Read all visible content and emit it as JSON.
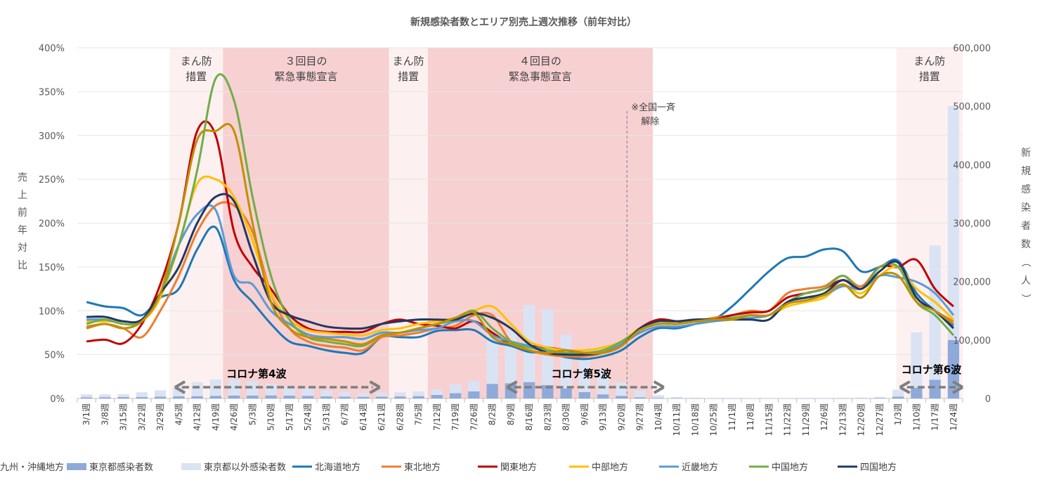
{
  "chart_data": {
    "type": "bar+line",
    "title": "新規感染者数とエリア別売上週次推移（前年対比）",
    "y_left_label": "売上前年対比",
    "y_right_label": "新規感染者数（人）",
    "y_left_ticks": [
      "0%",
      "50%",
      "100%",
      "150%",
      "200%",
      "250%",
      "300%",
      "350%",
      "400%"
    ],
    "y_left_range": [
      0,
      400
    ],
    "y_right_ticks": [
      "0",
      "100,000",
      "200,000",
      "300,000",
      "400,000",
      "500,000",
      "600,000"
    ],
    "y_right_range": [
      0,
      600000
    ],
    "categories": [
      "3/1週",
      "3/8週",
      "3/15週",
      "3/22週",
      "3/29週",
      "4/5週",
      "4/12週",
      "4/19週",
      "4/26週",
      "5/3週",
      "5/10週",
      "5/17週",
      "5/24週",
      "5/31週",
      "6/7週",
      "6/14週",
      "6/21週",
      "6/28週",
      "7/5週",
      "7/12週",
      "7/19週",
      "7/26週",
      "8/2週",
      "8/9週",
      "8/16週",
      "8/23週",
      "8/30週",
      "9/6週",
      "9/13週",
      "9/20週",
      "9/27週",
      "10/4週",
      "10/11週",
      "10/18週",
      "10/25週",
      "11/1週",
      "11/8週",
      "11/15週",
      "11/22週",
      "11/29週",
      "12/6週",
      "12/13週",
      "12/20週",
      "12/27週",
      "1/3週",
      "1/10週",
      "1/17週",
      "1/24週"
    ],
    "periods": [
      {
        "label": "まん防\n措置",
        "from": 5,
        "to": 7.9
      },
      {
        "label": "３回目の\n緊急事態宣言",
        "from": 7.9,
        "to": 16.9
      },
      {
        "label": "まん防\n措置",
        "from": 16.9,
        "to": 19
      },
      {
        "label": "４回目の\n緊急事態宣言",
        "from": 19,
        "to": 31.2
      },
      {
        "label": "まん防\n措置",
        "from": 44.4,
        "to": 48
      }
    ],
    "annotations": [
      {
        "text": "※全国一斉\n解除",
        "at": 29.8
      }
    ],
    "waves": [
      {
        "label": "コロナ第4波",
        "from": 5.3,
        "to": 16.4
      },
      {
        "label": "コロナ第5波",
        "from": 23.3,
        "to": 31.8
      },
      {
        "label": "コロナ第6波",
        "from": 44.6,
        "to": 48
      }
    ],
    "bar_series": [
      {
        "name": "東京都感染者数",
        "color": "#8eaadb",
        "values": [
          2100,
          2200,
          2400,
          2600,
          3000,
          3700,
          4000,
          4500,
          5000,
          5000,
          5200,
          4800,
          4500,
          3500,
          3000,
          2800,
          3200,
          3500,
          4000,
          6000,
          9000,
          12000,
          25000,
          26000,
          28000,
          23000,
          17000,
          11000,
          7000,
          4500,
          2000,
          1000,
          500,
          300,
          200,
          180,
          150,
          150,
          150,
          150,
          150,
          200,
          300,
          700,
          3000,
          18000,
          32000,
          100000
        ]
      },
      {
        "name": "東京都以外感染者数",
        "color": "#dae3f3",
        "values": [
          5000,
          4800,
          5000,
          8000,
          11000,
          17000,
          24000,
          28000,
          27000,
          25000,
          20000,
          16000,
          13000,
          10000,
          7500,
          6500,
          7000,
          7000,
          8000,
          9000,
          15000,
          18000,
          85000,
          90000,
          132000,
          130000,
          92000,
          62000,
          42000,
          23000,
          11000,
          4500,
          2000,
          1200,
          900,
          800,
          700,
          700,
          700,
          800,
          900,
          1100,
          1300,
          2000,
          12000,
          95000,
          230000,
          400000
        ]
      }
    ],
    "line_series": [
      {
        "name": "北海道地方",
        "color": "#1f77b4",
        "values": [
          110,
          105,
          103,
          95,
          115,
          125,
          170,
          195,
          135,
          110,
          85,
          65,
          60,
          55,
          52,
          52,
          70,
          70,
          70,
          77,
          78,
          78,
          65,
          60,
          53,
          52,
          47,
          45,
          48,
          55,
          70,
          80,
          80,
          85,
          90,
          105,
          125,
          145,
          160,
          162,
          170,
          168,
          145,
          150,
          157,
          120,
          100,
          83
        ]
      },
      {
        "name": "東北地方",
        "color": "#ed7d31",
        "values": [
          82,
          85,
          80,
          70,
          100,
          140,
          190,
          220,
          220,
          190,
          120,
          80,
          65,
          60,
          58,
          55,
          70,
          72,
          75,
          80,
          83,
          95,
          95,
          65,
          55,
          50,
          48,
          48,
          52,
          62,
          78,
          85,
          85,
          88,
          92,
          95,
          100,
          100,
          120,
          125,
          128,
          140,
          128,
          150,
          150,
          115,
          100,
          88
        ]
      },
      {
        "name": "関東地方",
        "color": "#c00000",
        "values": [
          65,
          67,
          63,
          85,
          130,
          200,
          305,
          300,
          190,
          150,
          125,
          95,
          80,
          76,
          76,
          76,
          85,
          90,
          85,
          83,
          80,
          88,
          75,
          62,
          60,
          58,
          55,
          52,
          52,
          60,
          80,
          90,
          88,
          88,
          90,
          95,
          98,
          100,
          115,
          120,
          125,
          135,
          125,
          150,
          150,
          158,
          125,
          105
        ]
      },
      {
        "name": "中部地方",
        "color": "#ffc000",
        "values": [
          88,
          88,
          88,
          88,
          115,
          175,
          245,
          250,
          230,
          180,
          120,
          90,
          78,
          75,
          73,
          72,
          78,
          80,
          85,
          88,
          92,
          100,
          105,
          85,
          65,
          58,
          55,
          55,
          58,
          65,
          80,
          85,
          88,
          88,
          90,
          92,
          95,
          95,
          105,
          110,
          115,
          130,
          120,
          140,
          150,
          125,
          110,
          90
        ]
      },
      {
        "name": "近畿地方",
        "color": "#5b9bd5",
        "values": [
          90,
          90,
          85,
          88,
          120,
          175,
          210,
          215,
          140,
          130,
          100,
          85,
          73,
          70,
          70,
          68,
          75,
          75,
          78,
          80,
          88,
          88,
          72,
          65,
          60,
          55,
          52,
          50,
          55,
          62,
          75,
          82,
          82,
          85,
          88,
          90,
          92,
          95,
          110,
          115,
          118,
          128,
          125,
          140,
          138,
          133,
          120,
          95
        ]
      },
      {
        "name": "中国地方",
        "color": "#70ad47",
        "values": [
          85,
          90,
          85,
          88,
          120,
          175,
          260,
          365,
          340,
          230,
          140,
          90,
          70,
          65,
          62,
          60,
          72,
          75,
          80,
          85,
          90,
          100,
          80,
          65,
          58,
          55,
          52,
          52,
          55,
          65,
          78,
          85,
          85,
          88,
          90,
          92,
          95,
          95,
          110,
          120,
          125,
          140,
          125,
          150,
          150,
          110,
          95,
          72
        ]
      },
      {
        "name": "四国地方",
        "color": "#203864",
        "values": [
          93,
          93,
          88,
          90,
          120,
          150,
          200,
          230,
          225,
          165,
          110,
          95,
          88,
          82,
          80,
          80,
          85,
          88,
          90,
          90,
          90,
          97,
          92,
          80,
          62,
          52,
          50,
          50,
          52,
          60,
          80,
          88,
          88,
          90,
          90,
          90,
          90,
          90,
          110,
          115,
          120,
          135,
          125,
          145,
          155,
          115,
          100,
          80
        ]
      },
      {
        "name": "九州・沖縄地方",
        "color": "#bf9000",
        "values": [
          80,
          85,
          80,
          88,
          120,
          200,
          295,
          305,
          305,
          200,
          110,
          80,
          70,
          68,
          65,
          62,
          72,
          75,
          80,
          85,
          92,
          98,
          70,
          62,
          55,
          52,
          55,
          52,
          52,
          60,
          78,
          85,
          85,
          88,
          90,
          90,
          95,
          95,
          108,
          112,
          118,
          130,
          115,
          140,
          140,
          110,
          100,
          85
        ]
      }
    ]
  }
}
